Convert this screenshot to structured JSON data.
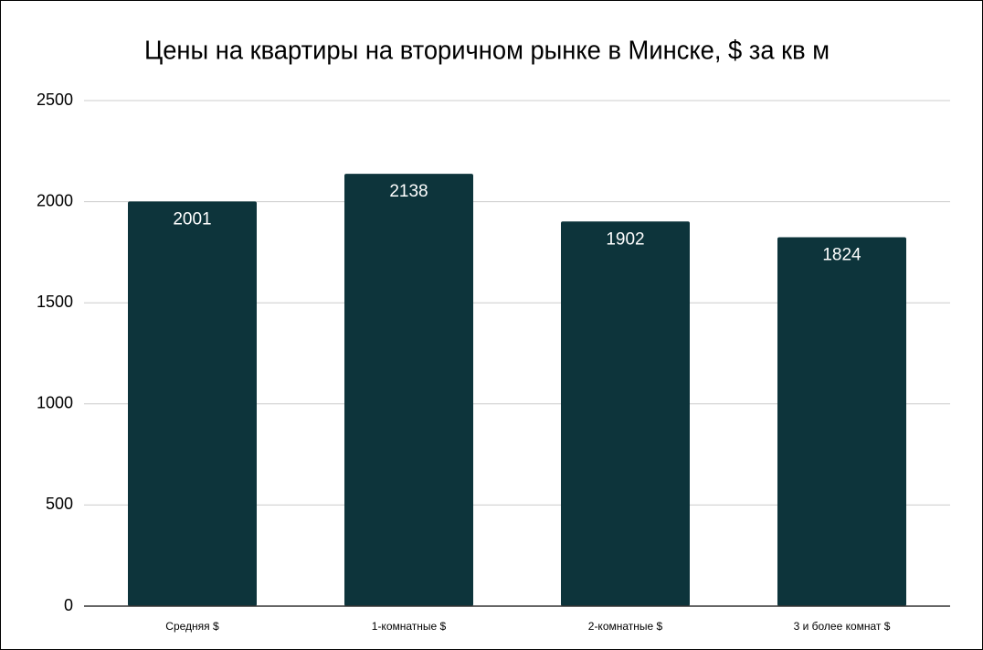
{
  "chart_data": {
    "type": "bar",
    "title": "Цены на квартиры на вторичном рынке в Минске, $ за кв м",
    "categories": [
      "Средняя $",
      "1-комнатные $",
      "2-комнатные $",
      "3 и более комнат $"
    ],
    "values": [
      2001,
      2138,
      1902,
      1824
    ],
    "color": "#0d343b",
    "ylim": [
      0,
      2500
    ],
    "yticks": [
      0,
      500,
      1000,
      1500,
      2000,
      2500
    ],
    "grid": true
  }
}
